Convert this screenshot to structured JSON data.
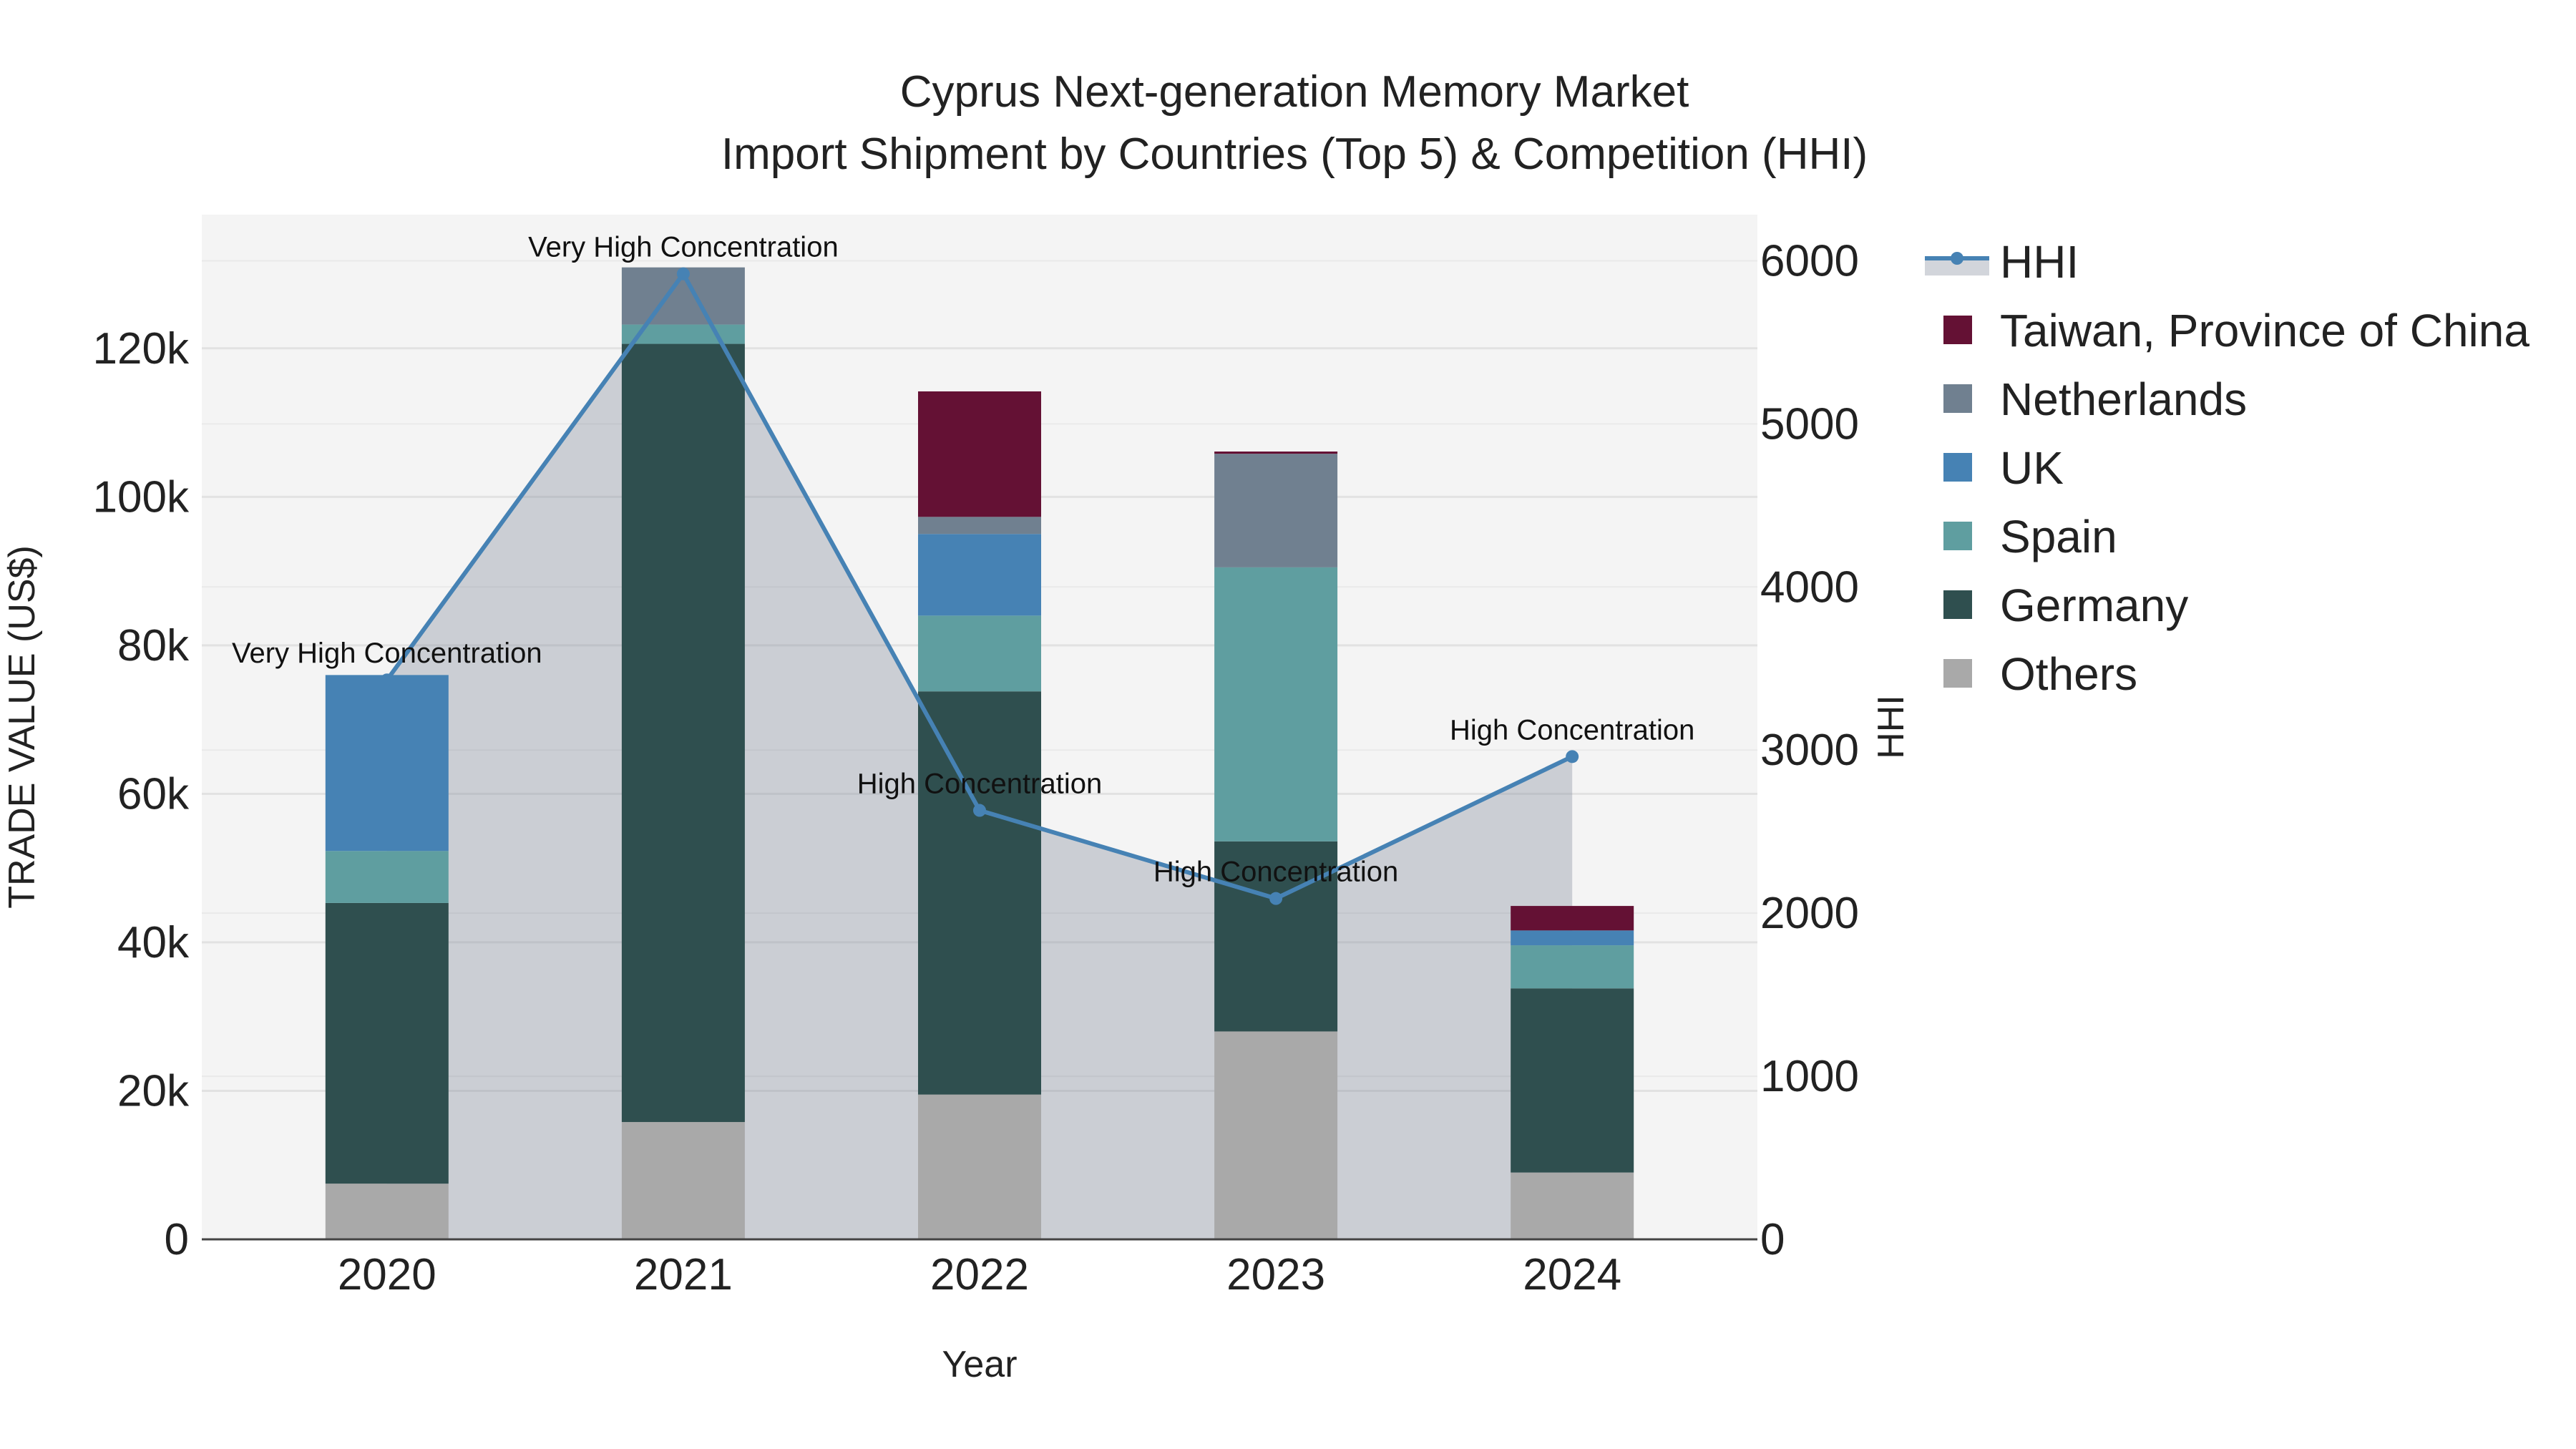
{
  "chart_data": {
    "type": "bar",
    "title_line1": "Cyprus Next-generation Memory Market",
    "title_line2": "Import Shipment by Countries (Top 5) & Competition (HHI)",
    "xlabel": "Year",
    "ylabel": "TRADE VALUE (US$)",
    "y2label": "HHI",
    "categories": [
      "2020",
      "2021",
      "2022",
      "2023",
      "2024"
    ],
    "ylim": [
      0,
      138000
    ],
    "y2lim": [
      0,
      6000
    ],
    "y_ticks": [
      0,
      20000,
      40000,
      60000,
      80000,
      100000,
      120000
    ],
    "y_tick_labels": [
      "0",
      "20k",
      "40k",
      "60k",
      "80k",
      "100k",
      "120k"
    ],
    "y2_ticks": [
      0,
      1000,
      2000,
      3000,
      4000,
      5000,
      6000
    ],
    "y2_tick_labels": [
      "0",
      "1000",
      "2000",
      "3000",
      "4000",
      "5000",
      "6000"
    ],
    "series": [
      {
        "name": "Others",
        "color": "#a9a9a9",
        "values": [
          7500,
          15800,
          19500,
          28000,
          9000
        ]
      },
      {
        "name": "Germany",
        "color": "#2f4f4f",
        "values": [
          37800,
          104800,
          54300,
          25600,
          24800
        ]
      },
      {
        "name": "Spain",
        "color": "#5f9ea0",
        "values": [
          7000,
          2600,
          10200,
          36900,
          5800
        ]
      },
      {
        "name": "UK",
        "color": "#4682b4",
        "values": [
          23700,
          0,
          11000,
          0,
          2000
        ]
      },
      {
        "name": "Netherlands",
        "color": "#708090",
        "values": [
          0,
          7700,
          2300,
          15300,
          0
        ]
      },
      {
        "name": "Taiwan, Province of China",
        "color": "#641134",
        "values": [
          0,
          0,
          16900,
          300,
          3300
        ]
      }
    ],
    "hhi": {
      "name": "HHI",
      "color": "#4682b4",
      "values": [
        3430,
        5920,
        2630,
        2090,
        2960
      ],
      "labels": [
        "Very High Concentration",
        "Very High Concentration",
        "High Concentration",
        "High Concentration",
        "High Concentration"
      ]
    },
    "legend": [
      "HHI",
      "Taiwan, Province of China",
      "Netherlands",
      "UK",
      "Spain",
      "Germany",
      "Others"
    ]
  }
}
